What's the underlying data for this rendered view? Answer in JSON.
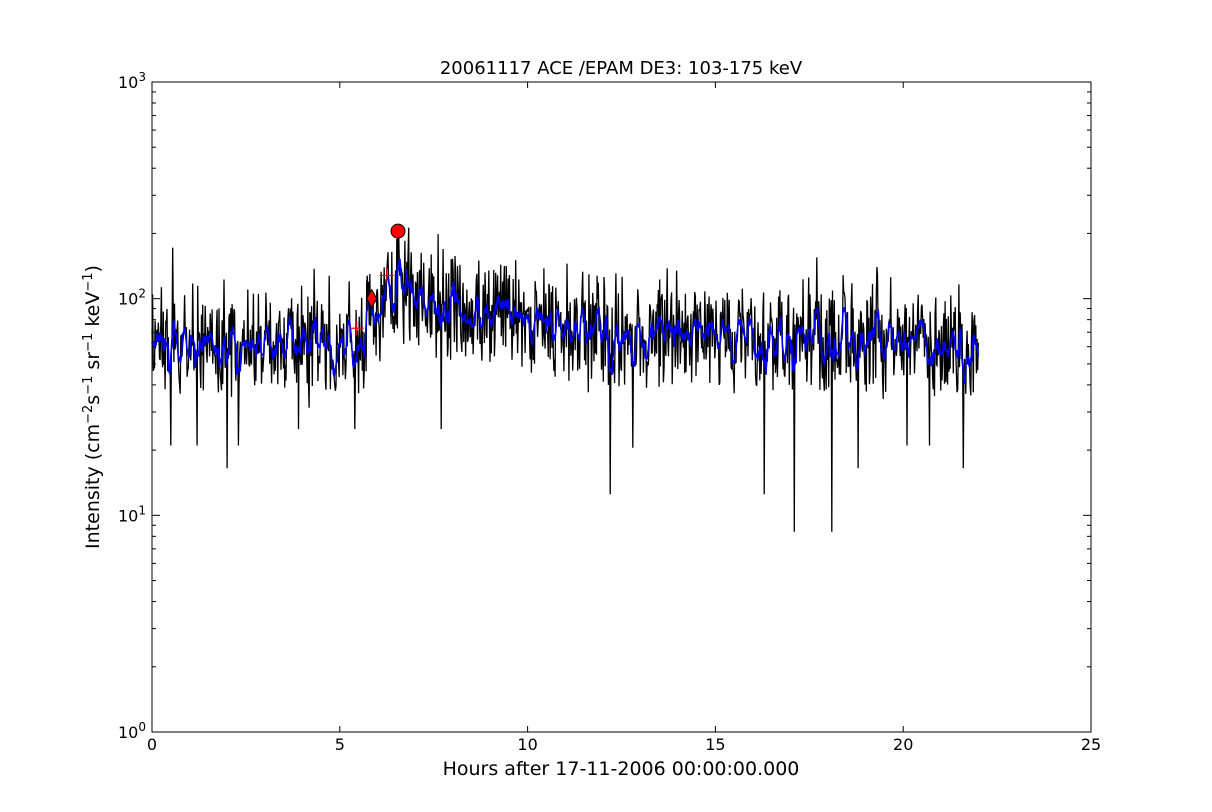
{
  "chart_data": {
    "type": "line",
    "title": "20061117 ACE /EPAM DE3: 103-175 keV",
    "xlabel": "Hours after 17-11-2006 00:00:00.000",
    "ylabel_parts": [
      "Intensity (cm",
      "−2",
      "s",
      "−1",
      " sr",
      "−1",
      " keV",
      "−1",
      ")"
    ],
    "yscale": "log",
    "xlim": [
      0,
      25
    ],
    "ylim": [
      1,
      1000
    ],
    "xticks": [
      0,
      5,
      10,
      15,
      20,
      25
    ],
    "yticks": [
      {
        "value": 1,
        "base": "10",
        "exp": "0"
      },
      {
        "value": 10,
        "base": "10",
        "exp": "1"
      },
      {
        "value": 100,
        "base": "10",
        "exp": "2"
      },
      {
        "value": 1000,
        "base": "10",
        "exp": "3"
      }
    ],
    "grid": false,
    "colors": {
      "raw": "#000000",
      "smoothed": "#0000ff",
      "markers": "#ff0000"
    },
    "series": [
      {
        "id": "raw",
        "x_start": 0,
        "x_end": 22,
        "anchors": [
          [
            0,
            62
          ],
          [
            0.5,
            66
          ],
          [
            1,
            64
          ],
          [
            2,
            63
          ],
          [
            3,
            62
          ],
          [
            4,
            63
          ],
          [
            5,
            63
          ],
          [
            5.6,
            68
          ],
          [
            5.9,
            90
          ],
          [
            6.3,
            105
          ],
          [
            6.6,
            115
          ],
          [
            7,
            112
          ],
          [
            7.5,
            105
          ],
          [
            8,
            98
          ],
          [
            9,
            90
          ],
          [
            10,
            82
          ],
          [
            11,
            76
          ],
          [
            12,
            73
          ],
          [
            13,
            71
          ],
          [
            14,
            70
          ],
          [
            15,
            69
          ],
          [
            16,
            68
          ],
          [
            17,
            68
          ],
          [
            18,
            67
          ],
          [
            19,
            66
          ],
          [
            20,
            65
          ],
          [
            21,
            63
          ],
          [
            22,
            62
          ]
        ],
        "dips": [
          [
            0.5,
            21
          ],
          [
            1.2,
            21
          ],
          [
            2,
            16.5
          ],
          [
            2.3,
            21
          ],
          [
            3.9,
            25
          ],
          [
            5.4,
            25
          ],
          [
            7.7,
            25
          ],
          [
            12.2,
            12.5
          ],
          [
            12.8,
            20.5
          ],
          [
            16.3,
            12.5
          ],
          [
            17.1,
            8.4
          ],
          [
            18.1,
            8.4
          ],
          [
            18.8,
            16.5
          ],
          [
            20.1,
            21
          ],
          [
            20.7,
            21
          ],
          [
            21.6,
            16.5
          ]
        ],
        "spikes": [
          [
            0.55,
            172
          ],
          [
            5.8,
            130
          ],
          [
            6.55,
            205
          ],
          [
            8.7,
            150
          ],
          [
            17.7,
            155
          ],
          [
            19.3,
            140
          ]
        ]
      },
      {
        "id": "smoothed",
        "x_start": 0,
        "x_end": 22
      }
    ],
    "markers": [
      {
        "type": "circle",
        "x": 6.55,
        "y": 205
      },
      {
        "type": "diamond",
        "x": 5.85,
        "y": 100
      },
      {
        "type": "plus",
        "x": 6.25,
        "y": 128
      },
      {
        "type": "plus",
        "x": 5.45,
        "y": 73
      }
    ]
  }
}
